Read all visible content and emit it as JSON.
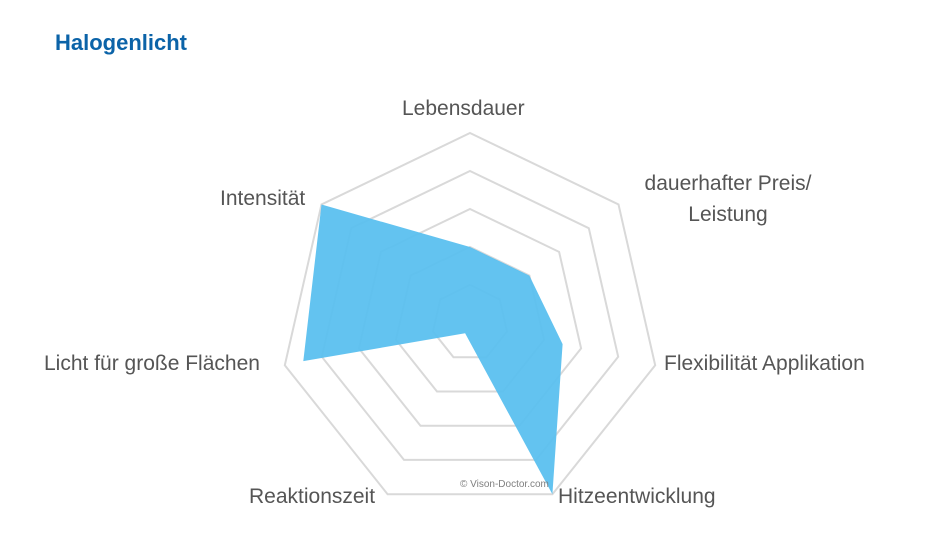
{
  "chart_data": {
    "type": "radar",
    "title": "Halogenlicht",
    "axes": [
      "Lebensdauer",
      "dauerhafter Preis/ Leistung",
      "Flexibilität Applikation",
      "Hitzeentwicklung",
      "Reaktionszeit",
      "Licht für große Flächen",
      "Intensität"
    ],
    "rings": 5,
    "max": 5,
    "series": [
      {
        "values": [
          2,
          2,
          2.5,
          5,
          0.3,
          4.5,
          5
        ]
      }
    ],
    "fill_color": "#5bc0ef",
    "grid_color": "#d9d9d9",
    "grid": true
  },
  "watermark": "© Vison-Doctor.com"
}
